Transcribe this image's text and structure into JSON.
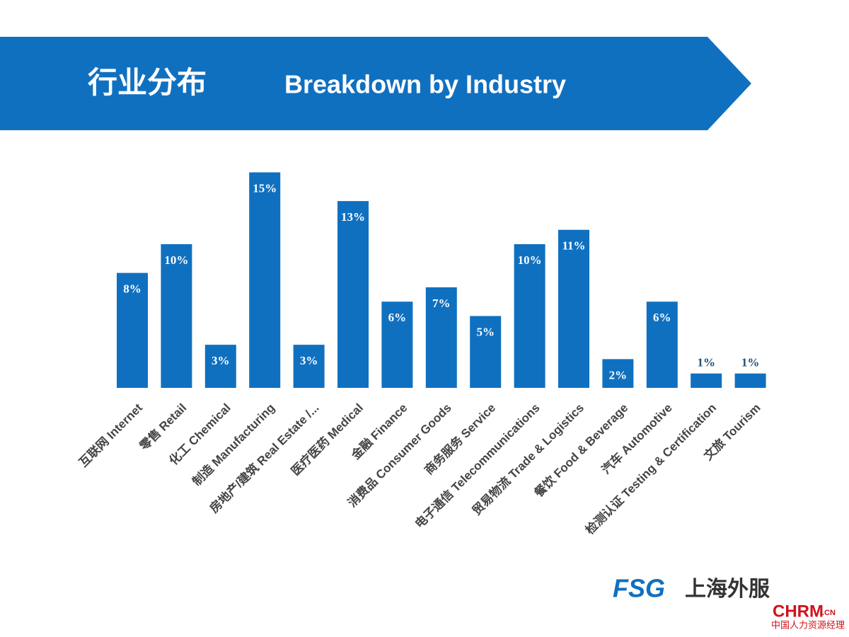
{
  "chart_data": {
    "type": "bar",
    "title": "行业分布",
    "subtitle": "Breakdown by Industry",
    "categories": [
      "互联网 Internet",
      "零售 Retail",
      "化工 Chemical",
      "制造 Manufacturing",
      "房地产/建筑 Real Estate /...",
      "医疗医药 Medical",
      "金融 Finance",
      "消费品 Consumer Goods",
      "商务服务 Service",
      "电子通信 Telecommunications",
      "贸易物流 Trade & Logistics",
      "餐饮 Food & Beverage",
      "汽车 Automotive",
      "检测认证 Testing & Certification",
      "文旅 Tourism"
    ],
    "values": [
      8,
      10,
      3,
      15,
      3,
      13,
      6,
      7,
      5,
      10,
      11,
      2,
      6,
      1,
      1
    ],
    "value_labels": [
      "8%",
      "10%",
      "3%",
      "15%",
      "3%",
      "13%",
      "6%",
      "7%",
      "5%",
      "10%",
      "11%",
      "2%",
      "6%",
      "1%",
      "1%"
    ],
    "color": "#1070c0"
  },
  "logo": {
    "brand": "FSG",
    "brand_cn": "上海外服",
    "site": "CHRM",
    "site_suffix": ".CN",
    "site_cn": "中国人力资源经理"
  }
}
